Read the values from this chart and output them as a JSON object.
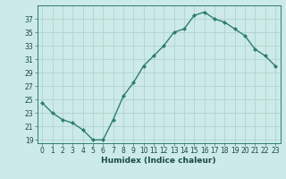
{
  "x": [
    0,
    1,
    2,
    3,
    4,
    5,
    6,
    7,
    8,
    9,
    10,
    11,
    12,
    13,
    14,
    15,
    16,
    17,
    18,
    19,
    20,
    21,
    22,
    23
  ],
  "y": [
    24.5,
    23.0,
    22.0,
    21.5,
    20.5,
    19.0,
    19.0,
    22.0,
    25.5,
    27.5,
    30.0,
    31.5,
    33.0,
    35.0,
    35.5,
    37.5,
    38.0,
    37.0,
    36.5,
    35.5,
    34.5,
    32.5,
    31.5,
    30.0
  ],
  "line_color": "#2e7d6e",
  "marker": "D",
  "marker_size": 2.0,
  "bg_color": "#cceae7",
  "grid_color": "#b0d4d0",
  "xlabel": "Humidex (Indice chaleur)",
  "ylim": [
    18.5,
    39
  ],
  "xlim": [
    -0.5,
    23.5
  ],
  "yticks": [
    19,
    21,
    23,
    25,
    27,
    29,
    31,
    33,
    35,
    37
  ],
  "xticks": [
    0,
    1,
    2,
    3,
    4,
    5,
    6,
    7,
    8,
    9,
    10,
    11,
    12,
    13,
    14,
    15,
    16,
    17,
    18,
    19,
    20,
    21,
    22,
    23
  ],
  "tick_label_fontsize": 5.5,
  "xlabel_fontsize": 6.5,
  "line_width": 1.0,
  "spine_color": "#2e7d6e",
  "tick_color": "#2e7d6e",
  "label_color": "#1a4a42"
}
